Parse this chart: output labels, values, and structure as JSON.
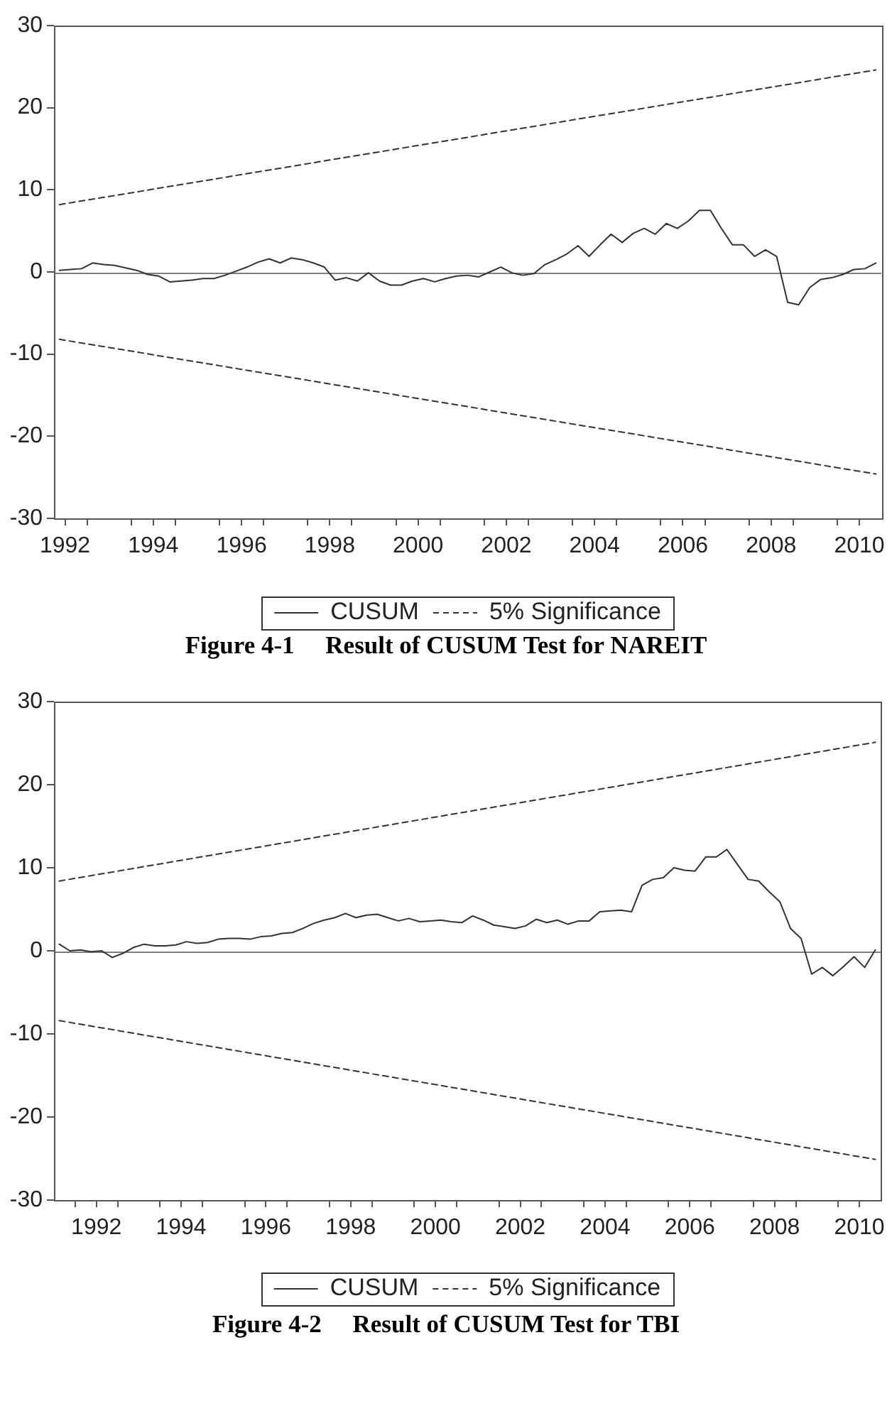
{
  "chart_data": [
    {
      "type": "line",
      "marker": "none",
      "legend": "bottom",
      "x": [
        1992.375,
        1992.625,
        1992.875,
        1993.125,
        1993.375,
        1993.625,
        1993.875,
        1994.125,
        1994.375,
        1994.625,
        1994.875,
        1995.125,
        1995.375,
        1995.625,
        1995.875,
        1996.125,
        1996.375,
        1996.625,
        1996.875,
        1997.125,
        1997.375,
        1997.625,
        1997.875,
        1998.125,
        1998.375,
        1998.625,
        1998.875,
        1999.125,
        1999.375,
        1999.625,
        1999.875,
        2000.125,
        2000.375,
        2000.625,
        2000.875,
        2001.125,
        2001.375,
        2001.625,
        2001.875,
        2002.125,
        2002.375,
        2002.625,
        2002.875,
        2003.125,
        2003.375,
        2003.625,
        2003.875,
        2004.125,
        2004.375,
        2004.625,
        2004.875,
        2005.125,
        2005.375,
        2005.625,
        2005.875,
        2006.125,
        2006.375,
        2006.625,
        2006.875,
        2007.125,
        2007.375,
        2007.625,
        2007.875,
        2008.125,
        2008.375,
        2008.625,
        2008.875,
        2009.125,
        2009.375,
        2009.625,
        2009.875,
        2010.125,
        2010.375,
        2010.625,
        2010.875
      ],
      "xlim": [
        1992.25,
        2011
      ],
      "xticks": [
        {
          "value": 1992.5,
          "label": "1992"
        },
        {
          "value": 1993,
          "label": null
        },
        {
          "value": 1994,
          "label": null
        },
        {
          "value": 1994.5,
          "label": "1994"
        },
        {
          "value": 1995,
          "label": null
        },
        {
          "value": 1996,
          "label": null
        },
        {
          "value": 1996.5,
          "label": "1996"
        },
        {
          "value": 1997,
          "label": null
        },
        {
          "value": 1998,
          "label": null
        },
        {
          "value": 1998.5,
          "label": "1998"
        },
        {
          "value": 1999,
          "label": null
        },
        {
          "value": 2000,
          "label": null
        },
        {
          "value": 2000.5,
          "label": "2000"
        },
        {
          "value": 2001,
          "label": null
        },
        {
          "value": 2002,
          "label": null
        },
        {
          "value": 2002.5,
          "label": "2002"
        },
        {
          "value": 2003,
          "label": null
        },
        {
          "value": 2004,
          "label": null
        },
        {
          "value": 2004.5,
          "label": "2004"
        },
        {
          "value": 2005,
          "label": null
        },
        {
          "value": 2006,
          "label": null
        },
        {
          "value": 2006.5,
          "label": "2006"
        },
        {
          "value": 2007,
          "label": null
        },
        {
          "value": 2008,
          "label": null
        },
        {
          "value": 2008.5,
          "label": "2008"
        },
        {
          "value": 2009,
          "label": null
        },
        {
          "value": 2010,
          "label": null
        },
        {
          "value": 2010.5,
          "label": "2010"
        }
      ],
      "ylim": [
        -30,
        30
      ],
      "yticks": [
        -30,
        -20,
        -10,
        0,
        10,
        20,
        30
      ],
      "series": [
        {
          "name": "CUSUM",
          "color": "#333333",
          "values": [
            0.2,
            0.3,
            0.4,
            1.1,
            0.9,
            0.8,
            0.5,
            0.2,
            -0.3,
            -0.5,
            -1.2,
            -1.1,
            -1.0,
            -0.8,
            -0.8,
            -0.4,
            0.1,
            0.6,
            1.2,
            1.6,
            1.1,
            1.7,
            1.5,
            1.1,
            0.6,
            -1.0,
            -0.7,
            -1.1,
            -0.1,
            -1.1,
            -1.6,
            -1.6,
            -1.1,
            -0.8,
            -1.2,
            -0.8,
            -0.5,
            -0.4,
            -0.6,
            0.0,
            0.6,
            -0.1,
            -0.4,
            -0.2,
            0.9,
            1.5,
            2.2,
            3.2,
            1.9,
            3.3,
            4.6,
            3.6,
            4.7,
            5.3,
            4.6,
            5.9,
            5.3,
            6.2,
            7.5,
            7.5,
            5.3,
            3.3,
            3.3,
            1.9,
            2.7,
            1.9,
            -3.7,
            -4.0,
            -1.9,
            -0.9,
            -0.7,
            -0.3,
            0.3,
            0.4,
            1.1
          ]
        },
        {
          "name": "5% Significance",
          "color": "#333333",
          "line_style": "dashed",
          "x": [
            1992.375,
            2010.875
          ],
          "values": [
            8.2,
            24.6
          ]
        },
        {
          "color": "#333333",
          "line_style": "dashed",
          "x": [
            1992.375,
            2010.875
          ],
          "values": [
            -8.2,
            -24.6
          ]
        }
      ],
      "ref_lines": [
        {
          "axis": "y",
          "value": 0,
          "color": "#808080"
        }
      ],
      "annotations": [
        "Figure 4-1     Result of CUSUM Test for NAREIT"
      ]
    },
    {
      "type": "line",
      "marker": "none",
      "legend": "bottom",
      "x": [
        1991.625,
        1991.875,
        1992.125,
        1992.375,
        1992.625,
        1992.875,
        1993.125,
        1993.375,
        1993.625,
        1993.875,
        1994.125,
        1994.375,
        1994.625,
        1994.875,
        1995.125,
        1995.375,
        1995.625,
        1995.875,
        1996.125,
        1996.375,
        1996.625,
        1996.875,
        1997.125,
        1997.375,
        1997.625,
        1997.875,
        1998.125,
        1998.375,
        1998.625,
        1998.875,
        1999.125,
        1999.375,
        1999.625,
        1999.875,
        2000.125,
        2000.375,
        2000.625,
        2000.875,
        2001.125,
        2001.375,
        2001.625,
        2001.875,
        2002.125,
        2002.375,
        2002.625,
        2002.875,
        2003.125,
        2003.375,
        2003.625,
        2003.875,
        2004.125,
        2004.375,
        2004.625,
        2004.875,
        2005.125,
        2005.375,
        2005.625,
        2005.875,
        2006.125,
        2006.375,
        2006.625,
        2006.875,
        2007.125,
        2007.375,
        2007.625,
        2007.875,
        2008.125,
        2008.375,
        2008.625,
        2008.875,
        2009.125,
        2009.375,
        2009.625,
        2009.875,
        2010.125,
        2010.375,
        2010.625,
        2010.875
      ],
      "xlim": [
        1991.5,
        2011
      ],
      "xticks": [
        {
          "value": 1992,
          "label": null
        },
        {
          "value": 1992.5,
          "label": "1992"
        },
        {
          "value": 1993,
          "label": null
        },
        {
          "value": 1994,
          "label": null
        },
        {
          "value": 1994.5,
          "label": "1994"
        },
        {
          "value": 1995,
          "label": null
        },
        {
          "value": 1996,
          "label": null
        },
        {
          "value": 1996.5,
          "label": "1996"
        },
        {
          "value": 1997,
          "label": null
        },
        {
          "value": 1998,
          "label": null
        },
        {
          "value": 1998.5,
          "label": "1998"
        },
        {
          "value": 1999,
          "label": null
        },
        {
          "value": 2000,
          "label": null
        },
        {
          "value": 2000.5,
          "label": "2000"
        },
        {
          "value": 2001,
          "label": null
        },
        {
          "value": 2002,
          "label": null
        },
        {
          "value": 2002.5,
          "label": "2002"
        },
        {
          "value": 2003,
          "label": null
        },
        {
          "value": 2004,
          "label": null
        },
        {
          "value": 2004.5,
          "label": "2004"
        },
        {
          "value": 2005,
          "label": null
        },
        {
          "value": 2006,
          "label": null
        },
        {
          "value": 2006.5,
          "label": "2006"
        },
        {
          "value": 2007,
          "label": null
        },
        {
          "value": 2008,
          "label": null
        },
        {
          "value": 2008.5,
          "label": "2008"
        },
        {
          "value": 2009,
          "label": null
        },
        {
          "value": 2010,
          "label": null
        },
        {
          "value": 2010.5,
          "label": "2010"
        }
      ],
      "ylim": [
        -30,
        30
      ],
      "yticks": [
        -30,
        -20,
        -10,
        0,
        10,
        20,
        30
      ],
      "series": [
        {
          "name": "CUSUM",
          "color": "#333333",
          "values": [
            0.8,
            0.0,
            0.1,
            -0.1,
            0.0,
            -0.8,
            -0.3,
            0.4,
            0.8,
            0.6,
            0.6,
            0.7,
            1.1,
            0.9,
            1.0,
            1.4,
            1.5,
            1.5,
            1.4,
            1.7,
            1.8,
            2.1,
            2.2,
            2.7,
            3.3,
            3.7,
            4.0,
            4.5,
            4.0,
            4.3,
            4.4,
            4.0,
            3.6,
            3.9,
            3.5,
            3.6,
            3.7,
            3.5,
            3.4,
            4.2,
            3.7,
            3.1,
            2.9,
            2.7,
            3.0,
            3.8,
            3.4,
            3.7,
            3.2,
            3.6,
            3.6,
            4.7,
            4.8,
            4.9,
            4.7,
            7.9,
            8.6,
            8.8,
            10.0,
            9.7,
            9.6,
            11.3,
            11.3,
            12.2,
            10.4,
            8.6,
            8.4,
            7.1,
            5.9,
            2.7,
            1.5,
            -2.8,
            -2.0,
            -3.0,
            -1.9,
            -0.7,
            -2.0,
            0.1
          ]
        },
        {
          "name": "5% Significance",
          "color": "#333333",
          "line_style": "dashed",
          "x": [
            1991.625,
            2010.875
          ],
          "values": [
            8.4,
            25.1
          ]
        },
        {
          "color": "#333333",
          "line_style": "dashed",
          "x": [
            1991.625,
            2010.875
          ],
          "values": [
            -8.4,
            -25.1
          ]
        }
      ],
      "ref_lines": [
        {
          "axis": "y",
          "value": 0,
          "color": "#808080"
        }
      ],
      "annotations": [
        "Figure 4-2     Result of CUSUM Test for TBI"
      ]
    }
  ]
}
